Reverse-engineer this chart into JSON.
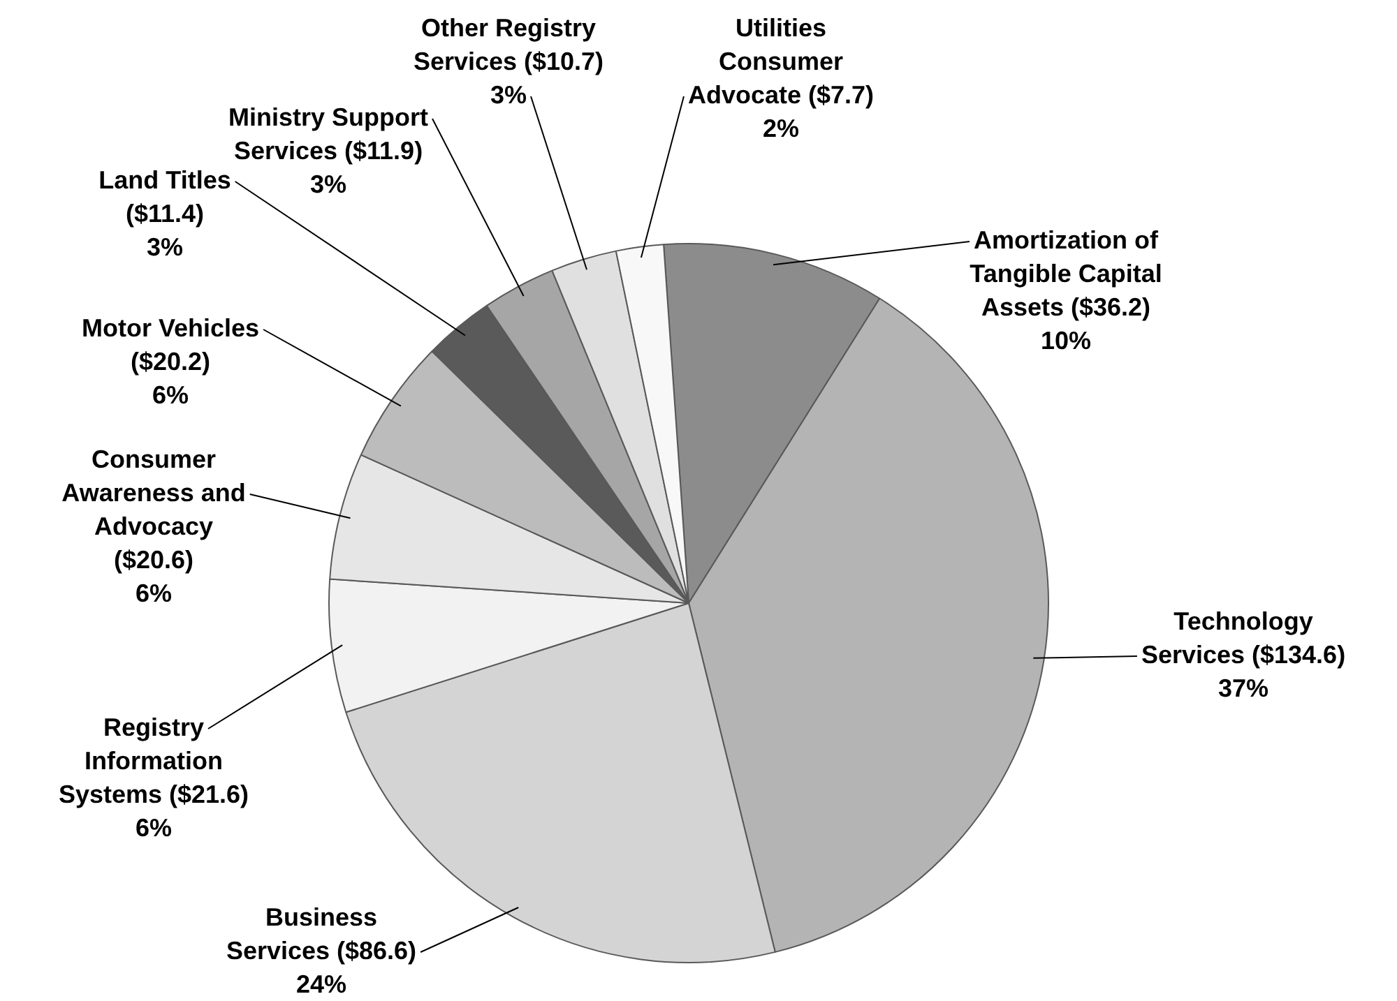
{
  "chart_data": {
    "type": "pie",
    "categories": [
      "Amortization of\nTangible Capital\nAssets",
      "Technology\nServices",
      "Business\nServices",
      "Registry\nInformation\nSystems",
      "Consumer\nAwareness and\nAdvocacy\n",
      "Motor Vehicles\n",
      "Land Titles\n",
      "Ministry Support\nServices",
      "Other Registry\nServices",
      "Utilities\nConsumer\nAdvocate"
    ],
    "values": [
      36.2,
      134.6,
      86.6,
      21.6,
      20.6,
      20.2,
      11.4,
      11.9,
      10.7,
      7.7
    ],
    "value_labels": [
      "($36.2)\n10%",
      "($134.6)\n37%",
      "($86.6)\n24%",
      "($21.6)\n6%",
      "($20.6)\n6%",
      "($20.2)\n6%",
      "($11.4)\n3%",
      "($11.9)\n3%",
      "($10.7)\n3%",
      "($7.7)\n2%"
    ],
    "colors": [
      "#8c8c8c",
      "#b4b4b4",
      "#d4d4d4",
      "#f2f2f2",
      "#e6e6e6",
      "#bcbcbc",
      "#5a5a5a",
      "#a6a6a6",
      "#e0e0e0",
      "#f8f8f8"
    ],
    "legend": false
  }
}
